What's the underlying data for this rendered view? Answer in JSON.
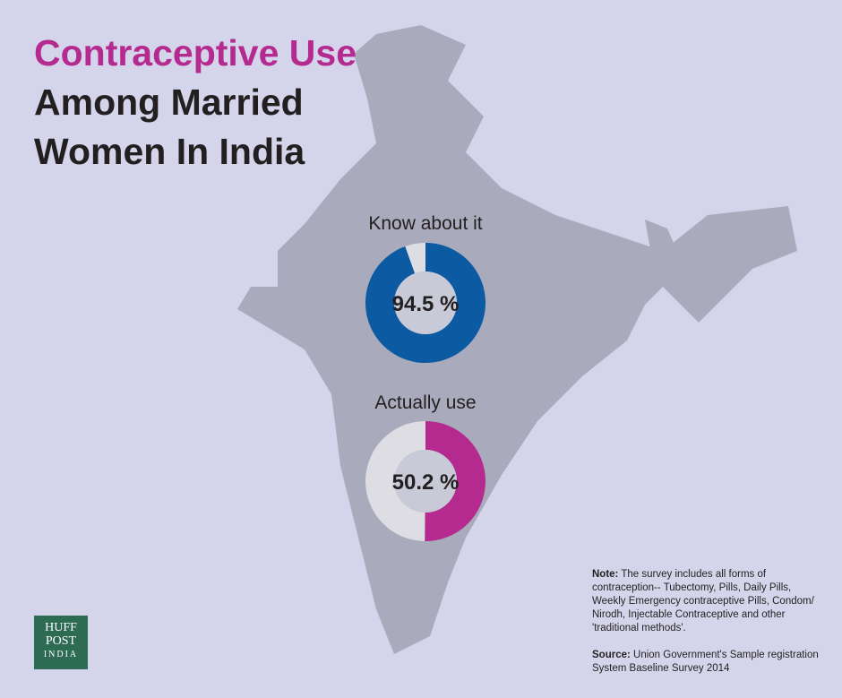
{
  "title": {
    "highlight": "Contraceptive Use",
    "rest": "Among Married Women In India"
  },
  "colors": {
    "background": "#d4d5ea",
    "map": "#a9aabb",
    "know": "#0b5aa2",
    "use": "#b52a8f",
    "remainder": "#dddde3"
  },
  "chart_data": [
    {
      "type": "pie",
      "title": "Know about it",
      "values": [
        94.5,
        5.5
      ],
      "label": "94.5 %"
    },
    {
      "type": "pie",
      "title": "Actually use",
      "values": [
        50.2,
        49.8
      ],
      "label": "50.2 %"
    }
  ],
  "note": {
    "label": "Note:",
    "text": "The survey includes all forms of contraception-- Tubectomy, Pills, Daily Pills, Weekly Emergency contraceptive Pills, Condom/ Nirodh, Injectable Contraceptive and other 'traditional methods'."
  },
  "source": {
    "label": "Source:",
    "text": "Union Government's Sample registration System Baseline Survey 2014"
  },
  "logo": [
    "HUFF",
    "POST",
    "INDIA"
  ]
}
